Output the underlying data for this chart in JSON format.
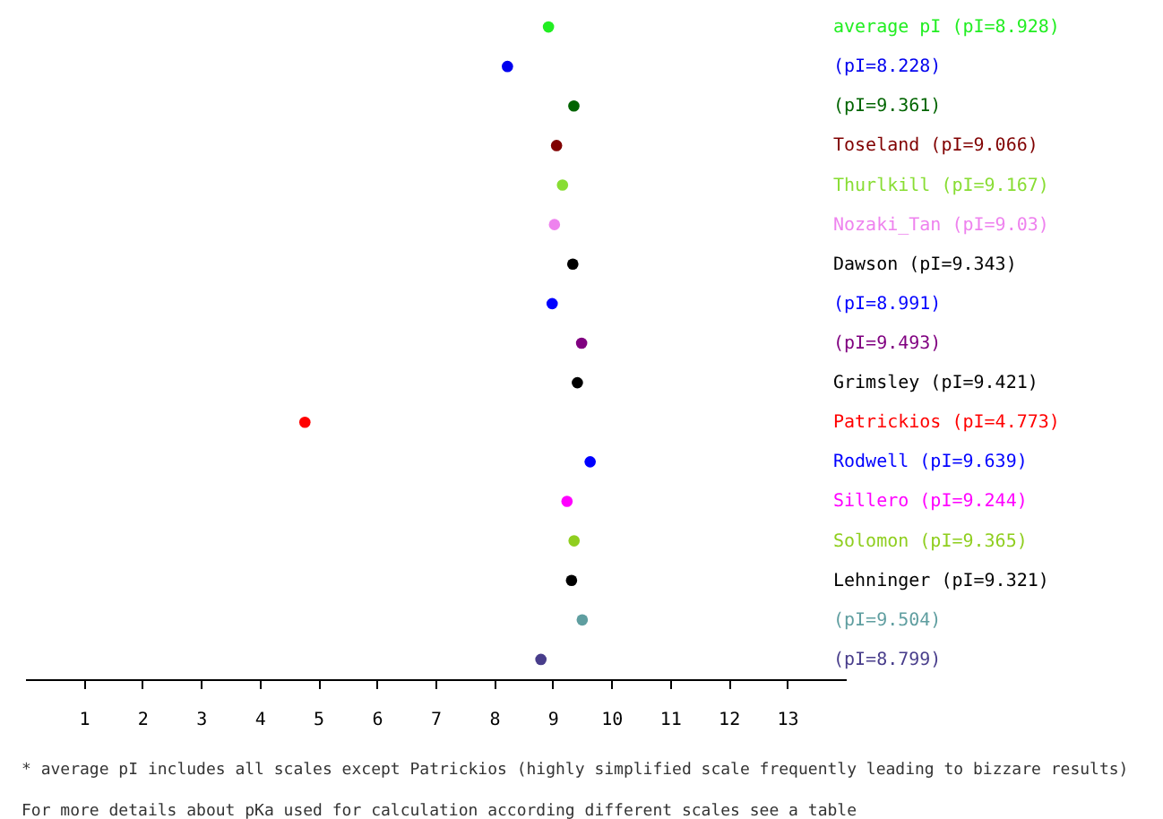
{
  "chart_data": {
    "type": "scatter",
    "orientation": "horizontal",
    "marker": "circle",
    "grid": false,
    "categories": [
      "average pI (pI=8.928)",
      "(pI=8.228)",
      "(pI=9.361)",
      "Toseland (pI=9.066)",
      "Thurlkill (pI=9.167)",
      "Nozaki_Tan (pI=9.03)",
      "Dawson (pI=9.343)",
      "(pI=8.991)",
      "(pI=9.493)",
      "Grimsley (pI=9.421)",
      "Patrickios (pI=4.773)",
      "Rodwell (pI=9.639)",
      "Sillero (pI=9.244)",
      "Solomon (pI=9.365)",
      "Lehninger (pI=9.321)",
      "(pI=9.504)",
      "(pI=8.799)"
    ],
    "values": [
      8.928,
      8.228,
      9.361,
      9.066,
      9.167,
      9.03,
      9.343,
      8.991,
      9.493,
      9.421,
      4.773,
      9.639,
      9.244,
      9.365,
      9.321,
      9.504,
      8.799
    ],
    "colors": [
      "#22ee22",
      "#0000ee",
      "#006400",
      "#800000",
      "#88dd33",
      "#ee82ee",
      "#000000",
      "#0000ff",
      "#800080",
      "#000000",
      "#ff0000",
      "#0000ff",
      "#ff00ff",
      "#8fce1f",
      "#000000",
      "#5f9ea0",
      "#483d8b"
    ],
    "xlim": [
      0,
      14
    ],
    "xticks": [
      1,
      2,
      3,
      4,
      5,
      6,
      7,
      8,
      9,
      10,
      11,
      12,
      13
    ],
    "annotations": [
      "* average pI includes all scales except Patrickios (highly simplified scale frequently leading to bizzare results)",
      "For more details about pKa used for calculation according different scales see a table"
    ]
  }
}
